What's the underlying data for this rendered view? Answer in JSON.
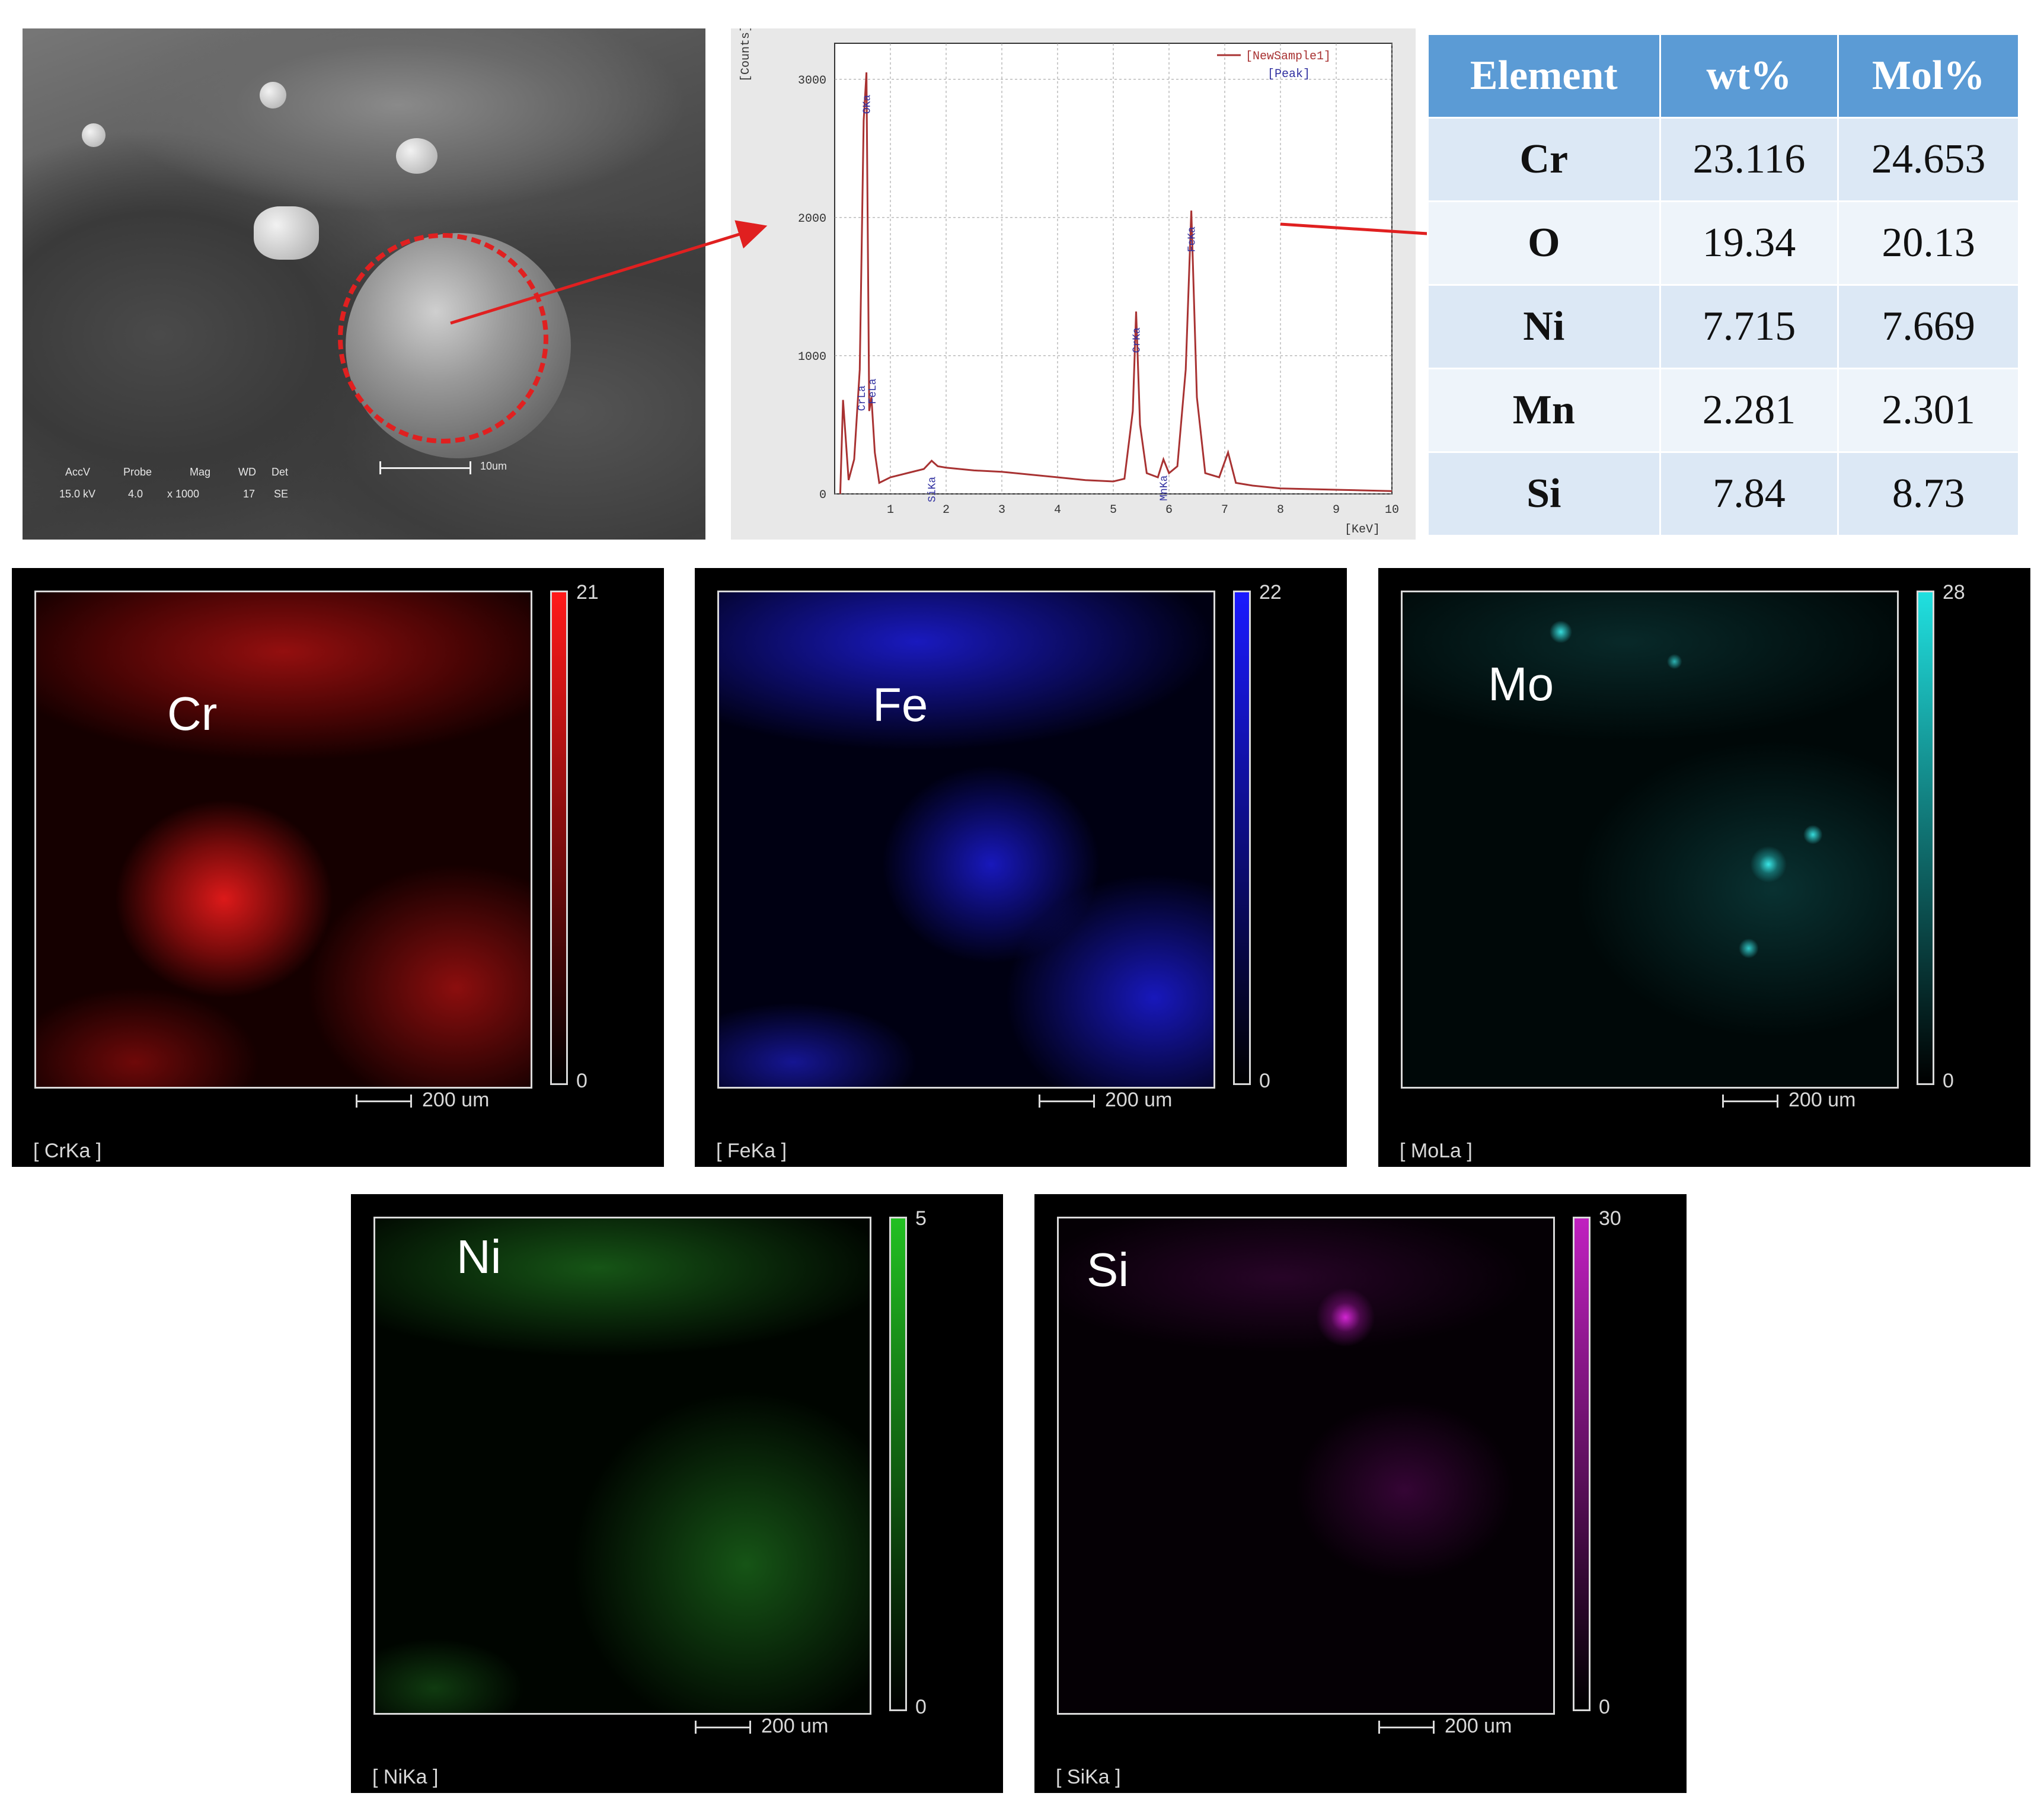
{
  "sem": {
    "labels": [
      "AccV",
      "Probe",
      "Mag",
      "WD",
      "Det"
    ],
    "values": [
      "15.0 kV",
      "4.0",
      "x 1000",
      "17",
      "SE"
    ],
    "scale": "10um"
  },
  "spectrum": {
    "legend": [
      "[NewSample1]",
      "[Peak]"
    ],
    "ylabel": "[Counts]",
    "xlabel": "[KeV]",
    "peak_labels": [
      "CrLa",
      "FeLa",
      "OKa",
      "SiKa",
      "CrKa",
      "MnKa",
      "FeKa"
    ]
  },
  "chart_data": {
    "type": "line",
    "ylabel": "[Counts]",
    "xlabel": "[KeV]",
    "xlim": [
      0,
      10
    ],
    "ylim": [
      0,
      3000
    ],
    "x_ticks": [
      1,
      2,
      3,
      4,
      5,
      6,
      7,
      8,
      9,
      10
    ],
    "y_ticks": [
      0,
      1000,
      2000,
      3000
    ],
    "series": [
      {
        "name": "[NewSample1]",
        "x": [
          0.1,
          0.15,
          0.25,
          0.35,
          0.45,
          0.52,
          0.57,
          0.62,
          0.66,
          0.72,
          0.8,
          1.0,
          1.3,
          1.6,
          1.74,
          1.85,
          2.0,
          2.5,
          3.0,
          3.5,
          4.0,
          4.5,
          5.0,
          5.2,
          5.35,
          5.41,
          5.48,
          5.6,
          5.8,
          5.9,
          6.0,
          6.15,
          6.3,
          6.4,
          6.5,
          6.65,
          6.9,
          7.06,
          7.2,
          7.5,
          8.0,
          9.0,
          10.0
        ],
        "y": [
          0,
          680,
          100,
          250,
          900,
          2700,
          3050,
          600,
          700,
          300,
          80,
          120,
          150,
          180,
          240,
          200,
          190,
          170,
          160,
          140,
          120,
          100,
          90,
          110,
          600,
          1320,
          500,
          150,
          120,
          250,
          150,
          200,
          900,
          2050,
          700,
          150,
          120,
          300,
          80,
          60,
          40,
          30,
          20
        ]
      }
    ]
  },
  "table": {
    "headers": [
      "Element",
      "wt%",
      "Mol%"
    ],
    "rows": [
      [
        "Cr",
        "23.116",
        "24.653"
      ],
      [
        "O",
        "19.34",
        "20.13"
      ],
      [
        "Ni",
        "7.715",
        "7.669"
      ],
      [
        "Mn",
        "2.281",
        "2.301"
      ],
      [
        "Si",
        "7.84",
        "8.73"
      ]
    ]
  },
  "maps": [
    {
      "element": "Cr",
      "line": "[ CrKa ]",
      "max": "21",
      "min": "0",
      "scale": "200 um",
      "color": "#ff1a1a"
    },
    {
      "element": "Fe",
      "line": "[ FeKa ]",
      "max": "22",
      "min": "0",
      "scale": "200 um",
      "color": "#1a1aff"
    },
    {
      "element": "Mo",
      "line": "[ MoLa ]",
      "max": "28",
      "min": "0",
      "scale": "200 um",
      "color": "#20e0e0"
    },
    {
      "element": "Ni",
      "line": "[ NiKa ]",
      "max": "5",
      "min": "0",
      "scale": "200 um",
      "color": "#22c022"
    },
    {
      "element": "Si",
      "line": "[ SiKa ]",
      "max": "30",
      "min": "0",
      "scale": "200 um",
      "color": "#c020c0"
    }
  ]
}
